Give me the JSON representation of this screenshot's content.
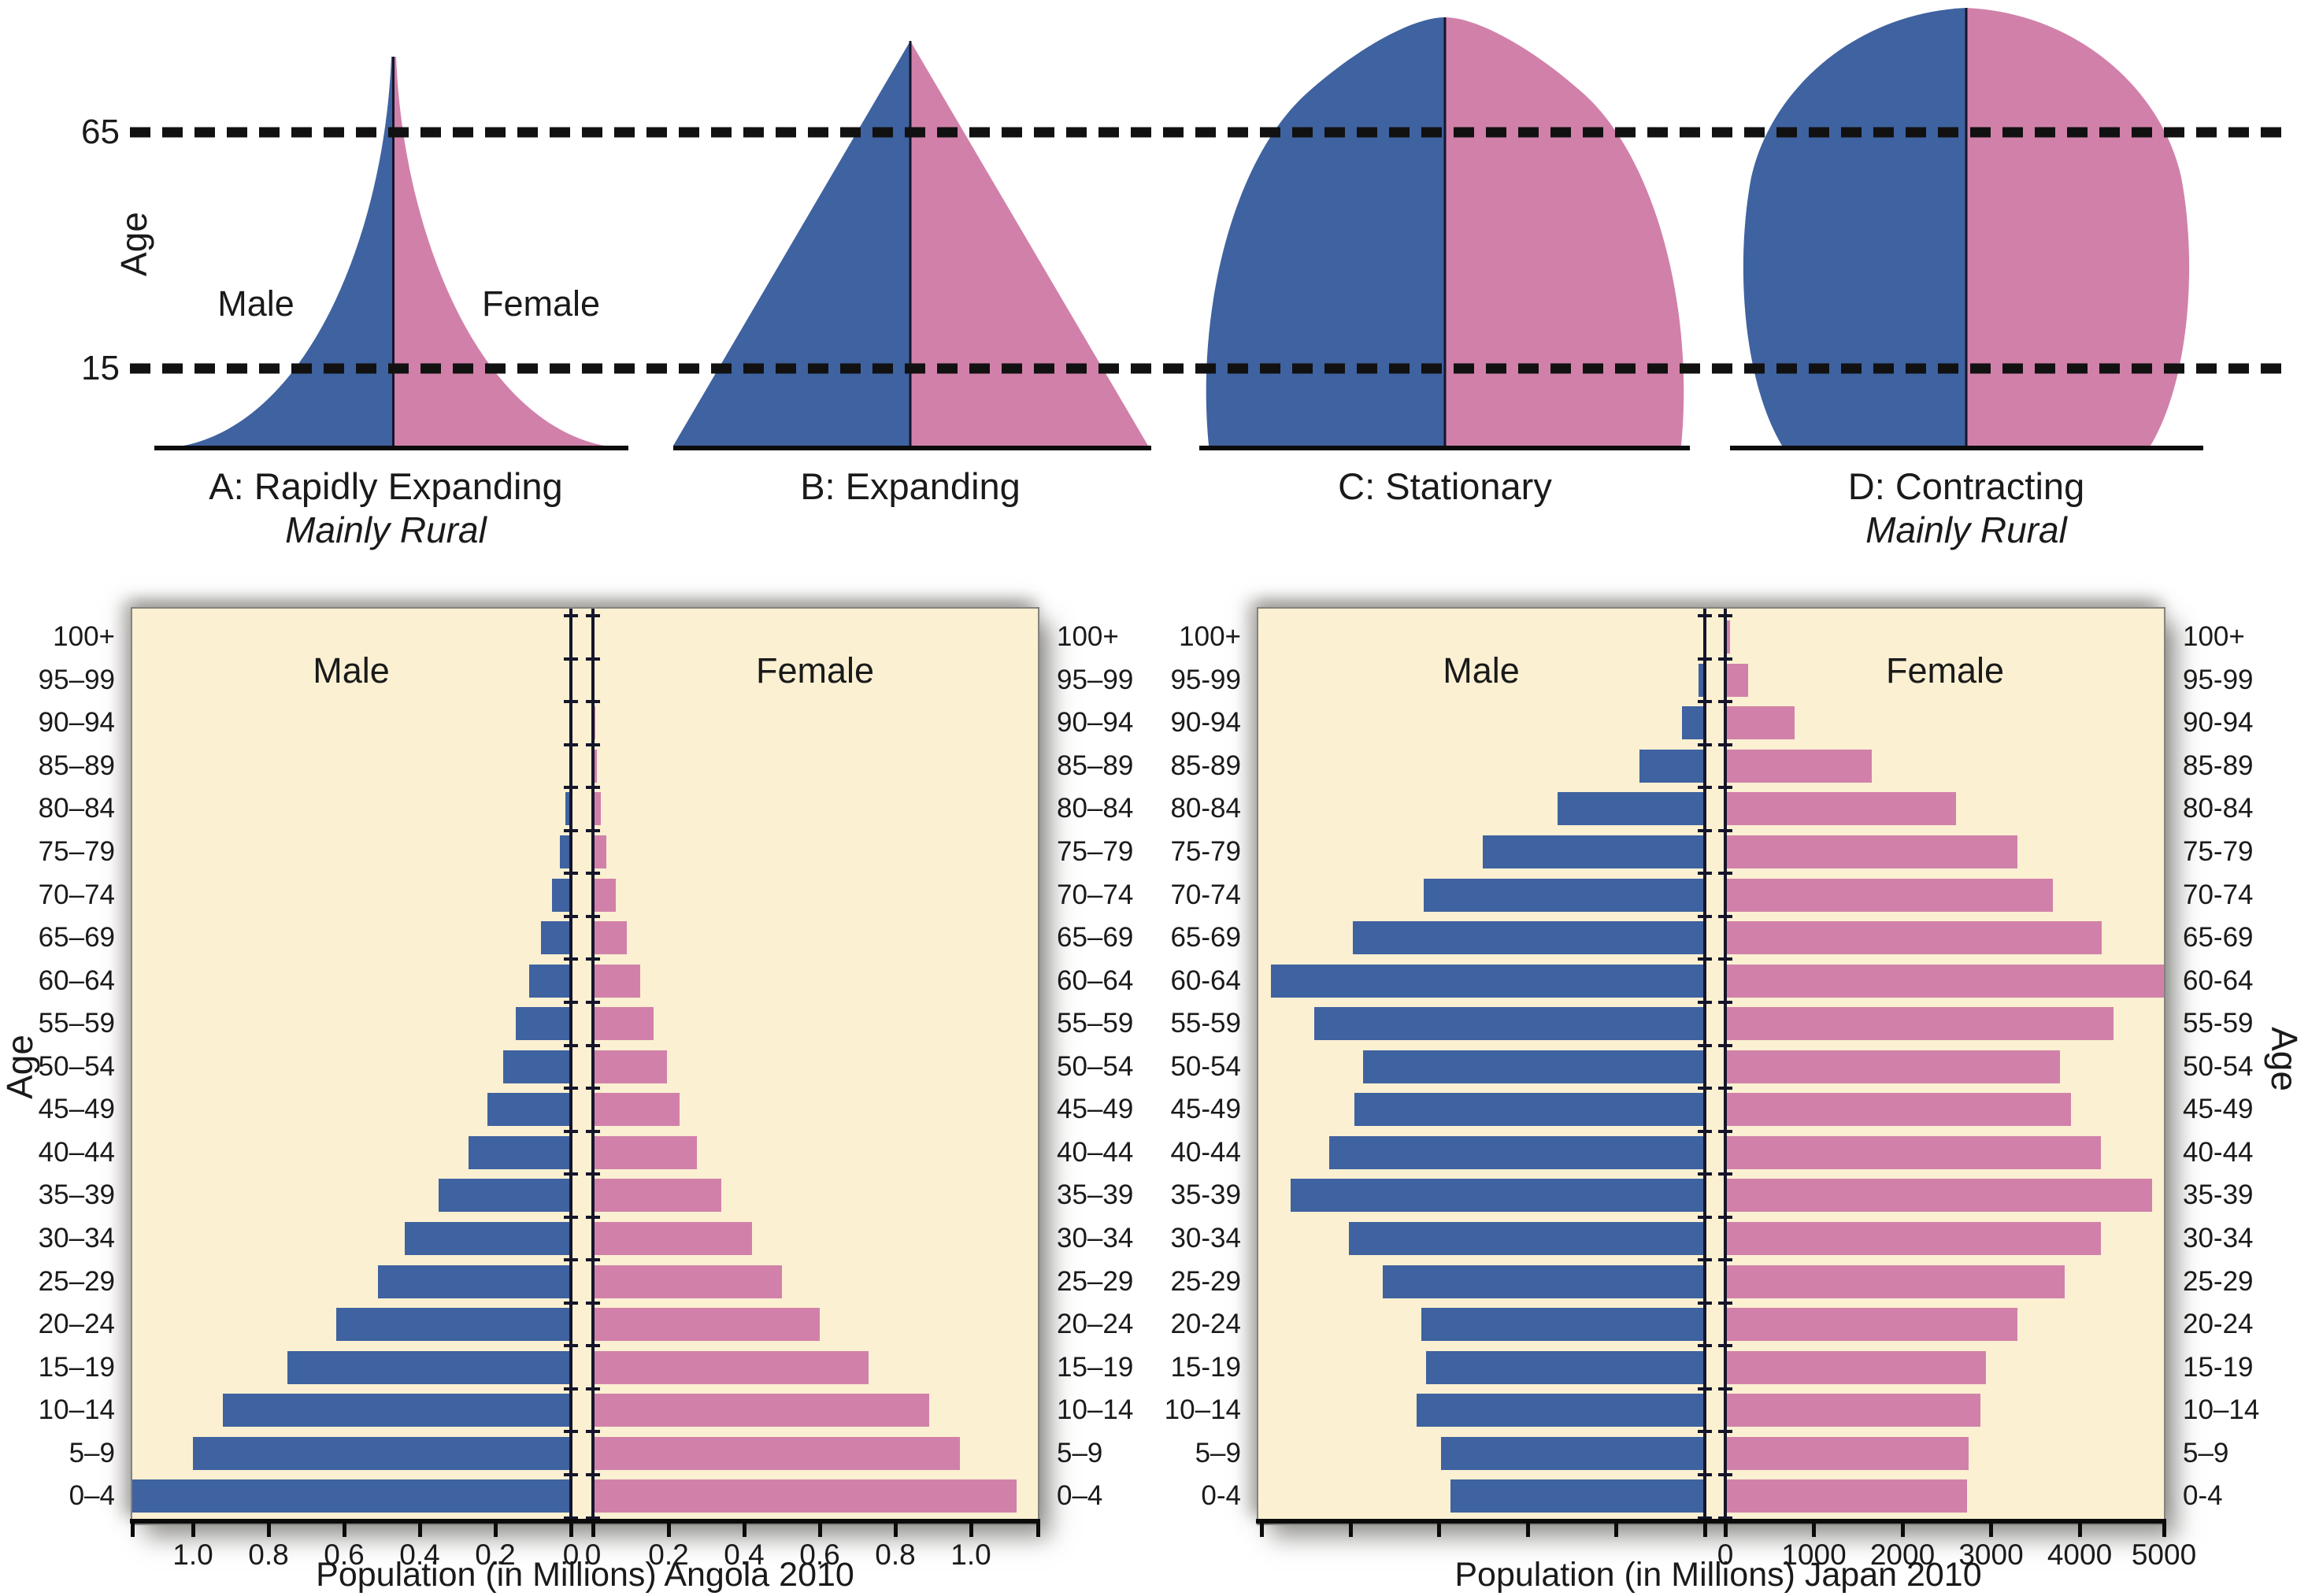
{
  "colors": {
    "male_fill": "#3F62A0",
    "female_fill": "#D181A9",
    "panel_bg": "#FBF0D2",
    "axis_black": "#15152b",
    "dash_black": "#111111",
    "text": "#1A1A1A"
  },
  "schematic": {
    "age_axis_label": "Age",
    "upper_age_line_label": "65",
    "lower_age_line_label": "15",
    "male_label": "Male",
    "female_label": "Female",
    "pyramids": [
      {
        "letter": "A",
        "caption": "A: Rapidly Expanding",
        "subcaption": "Mainly Rural",
        "shape": "rapidly-expanding"
      },
      {
        "letter": "B",
        "caption": "B: Expanding",
        "subcaption": "",
        "shape": "expanding"
      },
      {
        "letter": "C",
        "caption": "C: Stationary",
        "subcaption": "",
        "shape": "stationary"
      },
      {
        "letter": "D",
        "caption": "D: Contracting",
        "subcaption": "Mainly Rural",
        "shape": "contracting"
      }
    ]
  },
  "chart_data": [
    {
      "id": "angola",
      "type": "bar",
      "variant": "population-pyramid",
      "title": "Population (in Millions) Angola 2010",
      "age_axis_label": "Age",
      "male_label": "Male",
      "female_label": "Female",
      "values_order": "top-to-bottom (100+ first, 0–4 last)",
      "age_groups_left": [
        "100+",
        "95–99",
        "90–94",
        "85–89",
        "80–84",
        "75–79",
        "70–74",
        "65–69",
        "60–64",
        "55–59",
        "50–54",
        "45–49",
        "40–44",
        "35–39",
        "30–34",
        "25–29",
        "20–24",
        "15–19",
        "10–14",
        "5–9",
        "0–4"
      ],
      "age_groups_right": [
        "100+",
        "95–99",
        "90–94",
        "85–89",
        "80–84",
        "75–79",
        "70–74",
        "65–69",
        "60–64",
        "55–59",
        "50–54",
        "45–49",
        "40–44",
        "35–39",
        "30–34",
        "25–29",
        "20–24",
        "15–19",
        "10–14",
        "5–9",
        "0–4"
      ],
      "x_unit": "millions",
      "xlim": [
        0,
        1.2
      ],
      "grid": false,
      "x_ticks_male": [
        "1.0",
        "0.8",
        "0.6",
        "0.4",
        "0.2",
        "0"
      ],
      "x_ticks_female": [
        "0",
        "0.2",
        "0.4",
        "0.6",
        "0.8",
        "1.0"
      ],
      "series": [
        {
          "name": "Male",
          "values": [
            0,
            0,
            0,
            0.005,
            0.015,
            0.03,
            0.05,
            0.08,
            0.11,
            0.145,
            0.18,
            0.22,
            0.27,
            0.35,
            0.44,
            0.51,
            0.62,
            0.75,
            0.92,
            1.0,
            1.16
          ]
        },
        {
          "name": "Female",
          "values": [
            0,
            0.003,
            0.006,
            0.01,
            0.02,
            0.036,
            0.06,
            0.09,
            0.125,
            0.16,
            0.195,
            0.23,
            0.275,
            0.34,
            0.42,
            0.5,
            0.6,
            0.73,
            0.89,
            0.97,
            1.12
          ]
        }
      ]
    },
    {
      "id": "japan",
      "type": "bar",
      "variant": "population-pyramid",
      "title": "Population (in Millions) Japan 2010",
      "age_axis_label": "Age",
      "male_label": "Male",
      "female_label": "Female",
      "values_order": "top-to-bottom (100+ first, 0-4 last)",
      "age_groups_left": [
        "100+",
        "95-99",
        "90-94",
        "85-89",
        "80-84",
        "75-79",
        "70-74",
        "65-69",
        "60-64",
        "55-59",
        "50-54",
        "45-49",
        "40-44",
        "35-39",
        "30-34",
        "25-29",
        "20-24",
        "15-19",
        "10–14",
        "5–9",
        "0-4"
      ],
      "age_groups_right": [
        "100+",
        "95-99",
        "90-94",
        "85-89",
        "80-84",
        "75-79",
        "70-74",
        "65-69",
        "60-64",
        "55-59",
        "50-54",
        "45-49",
        "40-44",
        "35-39",
        "30-34",
        "25-29",
        "20-24",
        "15-19",
        "10–14",
        "5–9",
        "0-4"
      ],
      "x_unit": "thousands",
      "xlim": [
        0,
        5000
      ],
      "grid": false,
      "x_ticks_male": [
        "",
        "",
        "",
        "",
        "",
        ""
      ],
      "x_ticks_female": [
        "0",
        "1000",
        "2000",
        "3000",
        "4000",
        "5000"
      ],
      "series": [
        {
          "name": "Male",
          "values": [
            0,
            70,
            260,
            740,
            1660,
            2510,
            3170,
            3970,
            4900,
            4410,
            3860,
            3960,
            4240,
            4680,
            4020,
            3640,
            3200,
            3150,
            3250,
            2980,
            2870
          ]
        },
        {
          "name": "Female",
          "values": [
            50,
            260,
            780,
            1650,
            2600,
            3300,
            3700,
            4250,
            4990,
            4380,
            3780,
            3900,
            4240,
            4820,
            4240,
            3830,
            3300,
            2940,
            2880,
            2750,
            2730
          ]
        }
      ]
    }
  ]
}
